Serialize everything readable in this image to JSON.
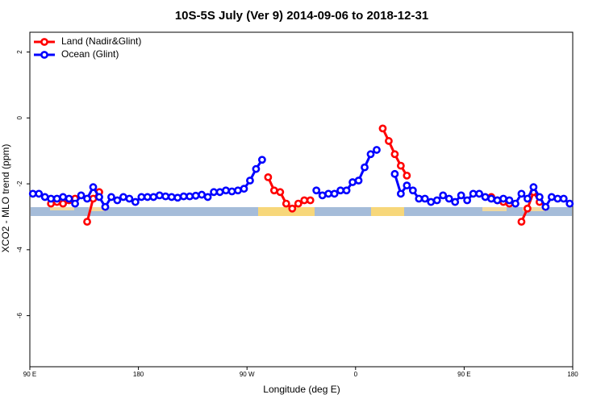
{
  "chart_data": {
    "type": "line",
    "title": "10S-5S July (Ver 9)   2014-09-06 to 2018-12-31",
    "x_label": "Longitude (deg E)",
    "y_label": "XCO2 - MLO trend (ppm)",
    "xlim": [
      90,
      540
    ],
    "ylim": [
      -7.55,
      2.6
    ],
    "xticks": [
      {
        "value": 90,
        "label": "90 E"
      },
      {
        "value": 180,
        "label": "180"
      },
      {
        "value": 270,
        "label": "90 W"
      },
      {
        "value": 360,
        "label": "0"
      },
      {
        "value": 450,
        "label": "90 E"
      },
      {
        "value": 540,
        "label": "180"
      }
    ],
    "yticks": [
      2,
      0,
      -2,
      -4,
      -6
    ],
    "legend": "top-left",
    "series": [
      {
        "name": "Land (Nadir&Glint)",
        "color": "#ff0000",
        "x": [
          107.5,
          112.5,
          117.5,
          122.5,
          127.5,
          132.5,
          137.5,
          142.5,
          147.5,
          152.5,
          287.5,
          292.5,
          297.5,
          302.5,
          307.5,
          312.5,
          317.5,
          322.5,
          327.5,
          382.5,
          387.5,
          392.5,
          397.5,
          402.5,
          407.5,
          472.5,
          477.5,
          482.5,
          487.5,
          492.5,
          497.5,
          502.5,
          507.5,
          512.5
        ],
        "values": [
          -2.6,
          -2.55,
          -2.6,
          -2.5,
          -2.45,
          null,
          -3.15,
          -2.45,
          -2.25,
          null,
          -1.8,
          -2.2,
          -2.25,
          -2.6,
          -2.75,
          -2.6,
          -2.5,
          -2.5,
          null,
          -0.32,
          -0.7,
          -1.1,
          -1.45,
          -1.75,
          null,
          -2.4,
          -2.5,
          -2.55,
          -2.6,
          null,
          -3.15,
          -2.75,
          -2.25,
          -2.55
        ]
      },
      {
        "name": "Ocean (Glint)",
        "color": "#0000ff",
        "x": [
          92.5,
          97.5,
          102.5,
          107.5,
          112.5,
          117.5,
          122.5,
          127.5,
          132.5,
          137.5,
          142.5,
          147.5,
          152.5,
          157.5,
          162.5,
          167.5,
          172.5,
          177.5,
          182.5,
          187.5,
          192.5,
          197.5,
          202.5,
          207.5,
          212.5,
          217.5,
          222.5,
          227.5,
          232.5,
          237.5,
          242.5,
          247.5,
          252.5,
          257.5,
          262.5,
          267.5,
          272.5,
          277.5,
          282.5,
          287.5,
          292.5,
          297.5,
          302.5,
          307.5,
          312.5,
          317.5,
          322.5,
          327.5,
          332.5,
          337.5,
          342.5,
          347.5,
          352.5,
          357.5,
          362.5,
          367.5,
          372.5,
          377.5,
          382.5,
          387.5,
          392.5,
          397.5,
          402.5,
          407.5,
          412.5,
          417.5,
          422.5,
          427.5,
          432.5,
          437.5,
          442.5,
          447.5,
          452.5,
          457.5,
          462.5,
          467.5,
          472.5,
          477.5,
          482.5,
          487.5,
          492.5,
          497.5,
          502.5,
          507.5,
          512.5,
          517.5,
          522.5,
          527.5,
          532.5,
          537.5
        ],
        "values": [
          -2.3,
          -2.3,
          -2.4,
          -2.45,
          -2.45,
          -2.4,
          -2.45,
          -2.6,
          -2.35,
          -2.45,
          -2.1,
          -2.4,
          -2.7,
          -2.4,
          -2.5,
          -2.4,
          -2.45,
          -2.55,
          -2.4,
          -2.4,
          -2.4,
          -2.35,
          -2.38,
          -2.4,
          -2.42,
          -2.38,
          -2.38,
          -2.36,
          -2.33,
          -2.4,
          -2.25,
          -2.25,
          -2.2,
          -2.23,
          -2.2,
          -2.15,
          -1.9,
          -1.55,
          -1.27,
          null,
          null,
          null,
          null,
          null,
          null,
          null,
          null,
          -2.2,
          -2.35,
          -2.3,
          -2.3,
          -2.2,
          -2.2,
          -1.95,
          -1.9,
          -1.5,
          -1.1,
          -0.97,
          null,
          null,
          -1.7,
          -2.3,
          -2.05,
          -2.2,
          -2.45,
          -2.45,
          -2.55,
          -2.5,
          -2.35,
          -2.45,
          -2.55,
          -2.35,
          -2.5,
          -2.3,
          -2.3,
          -2.4,
          -2.45,
          -2.5,
          -2.45,
          -2.5,
          -2.6,
          -2.3,
          -2.45,
          -2.1,
          -2.4,
          -2.7,
          -2.4,
          -2.45,
          -2.45,
          -2.6
        ]
      }
    ]
  }
}
